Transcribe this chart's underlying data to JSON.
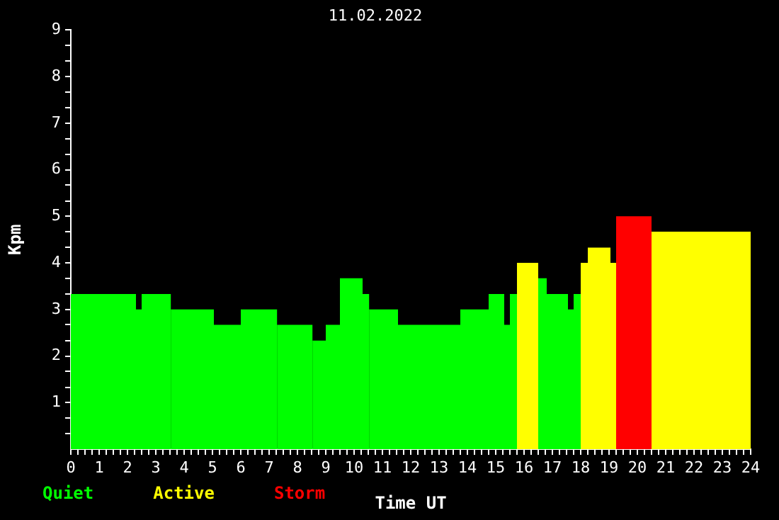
{
  "chart_data": {
    "type": "histogram",
    "title": "11.02.2022",
    "xlabel": "Time UT",
    "ylabel": "Kpm",
    "bins": [
      0,
      2.3,
      2.5,
      3.53,
      5.05,
      6,
      7.28,
      8.53,
      9,
      9.5,
      10.3,
      10.53,
      11.55,
      13.75,
      14.75,
      15.3,
      15.5,
      15.75,
      16.5,
      16.8,
      17.55,
      17.75,
      18,
      18.25,
      19.05,
      19.25,
      20.5,
      24
    ],
    "series": [
      {
        "name": "Quiet",
        "color": "#00ff00",
        "values": [
          3.33,
          3,
          3.33,
          3,
          2.67,
          3,
          2.67,
          2.33,
          2.67,
          3.67,
          3.33,
          3,
          2.67,
          3,
          3.33,
          2.67,
          3.33,
          null,
          3.67,
          3.33,
          3,
          3.33,
          null,
          null,
          null,
          null,
          null
        ]
      },
      {
        "name": "Active",
        "color": "#ffff00",
        "values": [
          null,
          null,
          null,
          null,
          null,
          null,
          null,
          null,
          null,
          null,
          null,
          null,
          null,
          null,
          null,
          null,
          null,
          4,
          null,
          null,
          null,
          null,
          4,
          4.33,
          4,
          null,
          4.67
        ]
      },
      {
        "name": "Storm",
        "color": "#ff0000",
        "values": [
          null,
          null,
          null,
          null,
          null,
          null,
          null,
          null,
          null,
          null,
          null,
          null,
          null,
          null,
          null,
          null,
          null,
          null,
          null,
          null,
          null,
          null,
          null,
          null,
          null,
          5,
          null
        ]
      }
    ],
    "xlim": [
      0,
      24
    ],
    "ylim": [
      0,
      9
    ],
    "xticks": [
      0,
      {
        "value": 0.25,
        "label": null
      },
      {
        "value": 0.5,
        "label": null
      },
      {
        "value": 0.75,
        "label": null
      },
      1,
      {
        "value": 1.25,
        "label": null
      },
      {
        "value": 1.5,
        "label": null
      },
      {
        "value": 1.75,
        "label": null
      },
      2,
      {
        "value": 2.25,
        "label": null
      },
      {
        "value": 2.5,
        "label": null
      },
      {
        "value": 2.75,
        "label": null
      },
      3,
      {
        "value": 3.25,
        "label": null
      },
      {
        "value": 3.5,
        "label": null
      },
      {
        "value": 3.75,
        "label": null
      },
      4,
      {
        "value": 4.25,
        "label": null
      },
      {
        "value": 4.5,
        "label": null
      },
      {
        "value": 4.75,
        "label": null
      },
      5,
      {
        "value": 5.25,
        "label": null
      },
      {
        "value": 5.5,
        "label": null
      },
      {
        "value": 5.75,
        "label": null
      },
      6,
      {
        "value": 6.25,
        "label": null
      },
      {
        "value": 6.5,
        "label": null
      },
      {
        "value": 6.75,
        "label": null
      },
      7,
      {
        "value": 7.25,
        "label": null
      },
      {
        "value": 7.5,
        "label": null
      },
      {
        "value": 7.75,
        "label": null
      },
      8,
      {
        "value": 8.25,
        "label": null
      },
      {
        "value": 8.5,
        "label": null
      },
      {
        "value": 8.75,
        "label": null
      },
      9,
      {
        "value": 9.25,
        "label": null
      },
      {
        "value": 9.5,
        "label": null
      },
      {
        "value": 9.75,
        "label": null
      },
      10,
      {
        "value": 10.25,
        "label": null
      },
      {
        "value": 10.5,
        "label": null
      },
      {
        "value": 10.75,
        "label": null
      },
      11,
      {
        "value": 11.25,
        "label": null
      },
      {
        "value": 11.5,
        "label": null
      },
      {
        "value": 11.75,
        "label": null
      },
      12,
      {
        "value": 12.25,
        "label": null
      },
      {
        "value": 12.5,
        "label": null
      },
      {
        "value": 12.75,
        "label": null
      },
      13,
      {
        "value": 13.25,
        "label": null
      },
      {
        "value": 13.5,
        "label": null
      },
      {
        "value": 13.75,
        "label": null
      },
      14,
      {
        "value": 14.25,
        "label": null
      },
      {
        "value": 14.5,
        "label": null
      },
      {
        "value": 14.75,
        "label": null
      },
      15,
      {
        "value": 15.25,
        "label": null
      },
      {
        "value": 15.5,
        "label": null
      },
      {
        "value": 15.75,
        "label": null
      },
      16,
      {
        "value": 16.25,
        "label": null
      },
      {
        "value": 16.5,
        "label": null
      },
      {
        "value": 16.75,
        "label": null
      },
      17,
      {
        "value": 17.25,
        "label": null
      },
      {
        "value": 17.5,
        "label": null
      },
      {
        "value": 17.75,
        "label": null
      },
      18,
      {
        "value": 18.25,
        "label": null
      },
      {
        "value": 18.5,
        "label": null
      },
      {
        "value": 18.75,
        "label": null
      },
      19,
      {
        "value": 19.25,
        "label": null
      },
      {
        "value": 19.5,
        "label": null
      },
      {
        "value": 19.75,
        "label": null
      },
      20,
      {
        "value": 20.25,
        "label": null
      },
      {
        "value": 20.5,
        "label": null
      },
      {
        "value": 20.75,
        "label": null
      },
      21,
      {
        "value": 21.25,
        "label": null
      },
      {
        "value": 21.5,
        "label": null
      },
      {
        "value": 21.75,
        "label": null
      },
      22,
      {
        "value": 22.25,
        "label": null
      },
      {
        "value": 22.5,
        "label": null
      },
      {
        "value": 22.75,
        "label": null
      },
      23,
      {
        "value": 23.25,
        "label": null
      },
      {
        "value": 23.5,
        "label": null
      },
      {
        "value": 23.75,
        "label": null
      },
      24
    ],
    "yticks": [
      {
        "value": 0.33,
        "label": null
      },
      {
        "value": 0.67,
        "label": null
      },
      1,
      {
        "value": 1.33,
        "label": null
      },
      {
        "value": 1.67,
        "label": null
      },
      2,
      {
        "value": 2.33,
        "label": null
      },
      {
        "value": 2.67,
        "label": null
      },
      3,
      {
        "value": 3.33,
        "label": null
      },
      {
        "value": 3.67,
        "label": null
      },
      4,
      {
        "value": 4.33,
        "label": null
      },
      {
        "value": 4.67,
        "label": null
      },
      5,
      {
        "value": 5.33,
        "label": null
      },
      {
        "value": 5.67,
        "label": null
      },
      6,
      {
        "value": 6.33,
        "label": null
      },
      {
        "value": 6.67,
        "label": null
      },
      7,
      {
        "value": 7.33,
        "label": null
      },
      {
        "value": 7.67,
        "label": null
      },
      8,
      {
        "value": 8.33,
        "label": null
      },
      {
        "value": 8.67,
        "label": null
      },
      9
    ],
    "grid": false,
    "legend": "bottom left"
  }
}
